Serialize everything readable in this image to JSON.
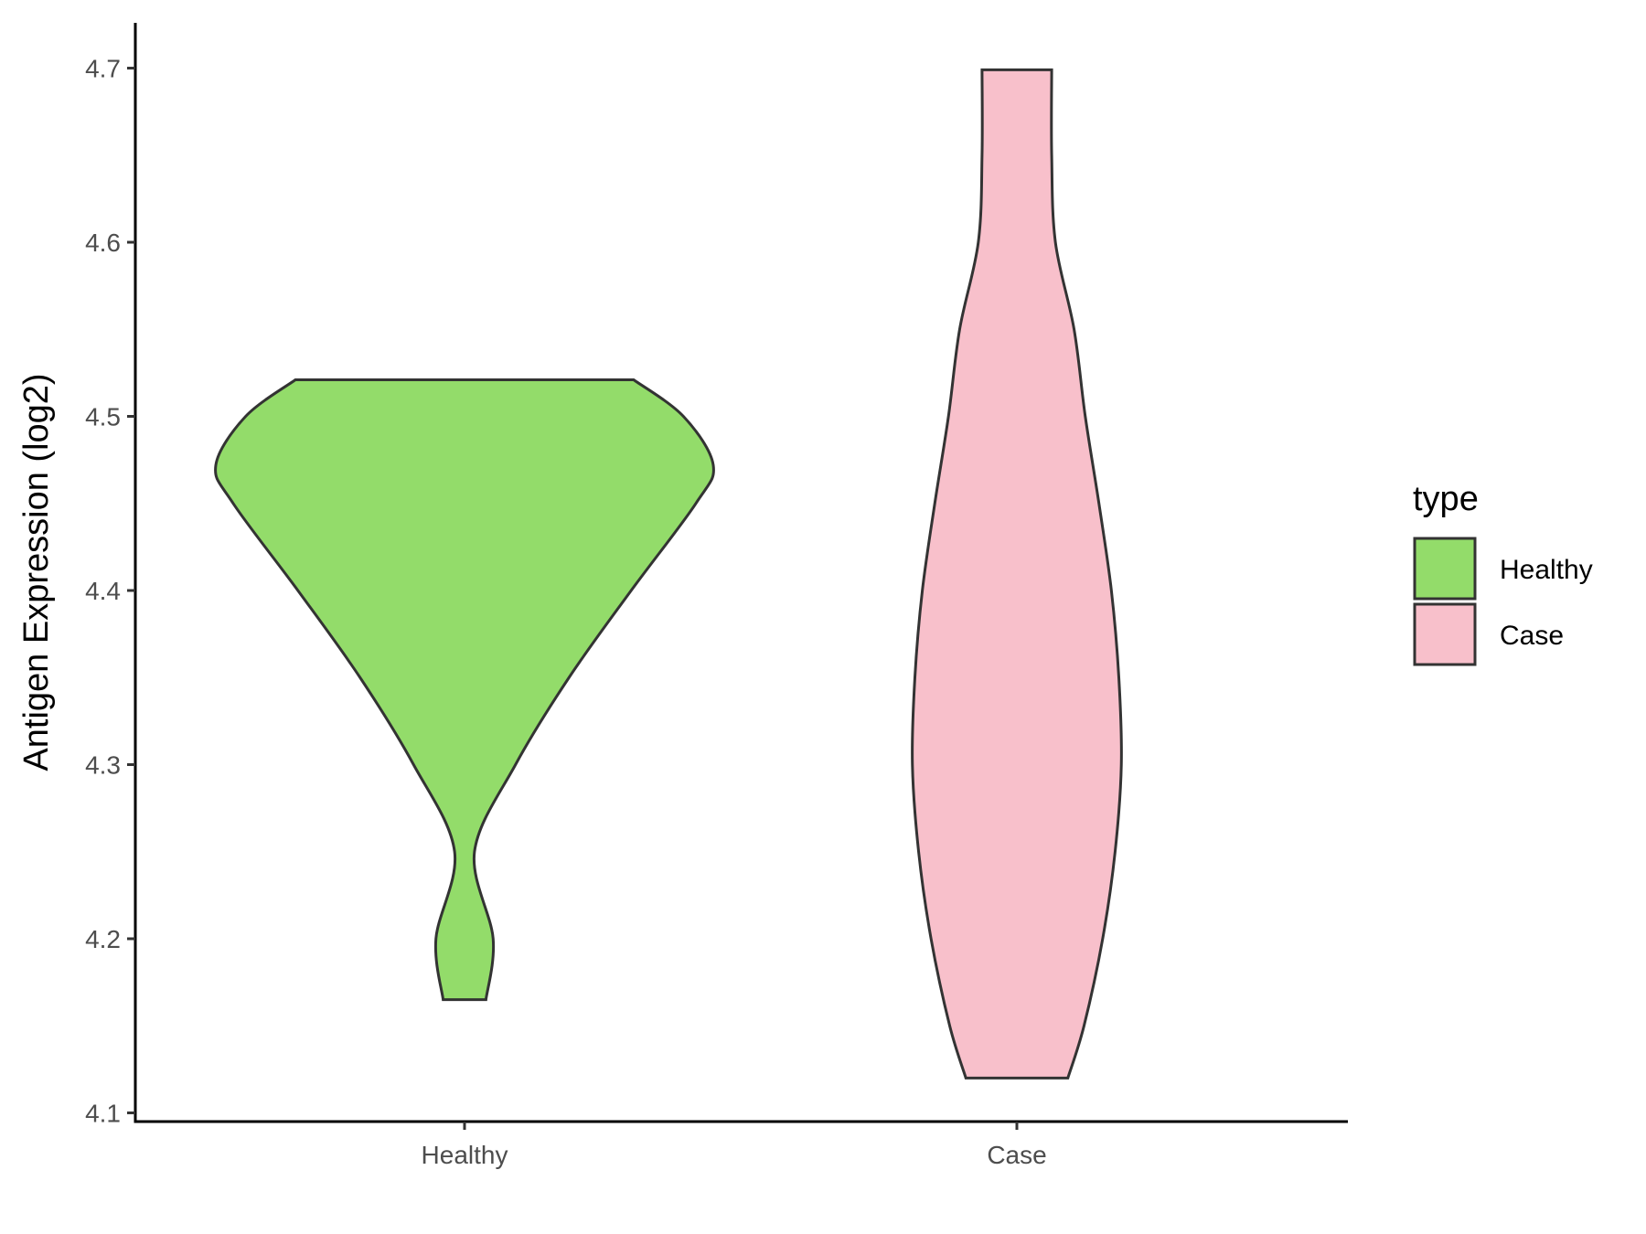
{
  "chart_data": {
    "type": "violin",
    "title": "",
    "xlabel": "",
    "ylabel": "Antigen Expression (log2)",
    "ylim": [
      4.095,
      4.726
    ],
    "yticks": [
      4.1,
      4.2,
      4.3,
      4.4,
      4.5,
      4.6,
      4.7
    ],
    "ytick_labels": [
      "4.1",
      "4.2",
      "4.3",
      "4.4",
      "4.5",
      "4.6",
      "4.7"
    ],
    "categories": [
      "Healthy",
      "Case"
    ],
    "grid": false,
    "legend": {
      "title": "type",
      "placement": "right",
      "entries": [
        {
          "label": "Healthy",
          "color": "#93dc6a"
        },
        {
          "label": "Case",
          "color": "#f8c0cb"
        }
      ]
    },
    "series": [
      {
        "category": "Healthy",
        "color": "#93dc6a",
        "y_min": 4.165,
        "y_max": 4.521,
        "density_profile": [
          {
            "y": 4.165,
            "w": 0.086
          },
          {
            "y": 4.2,
            "w": 0.115
          },
          {
            "y": 4.25,
            "w": 0.04
          },
          {
            "y": 4.3,
            "w": 0.205
          },
          {
            "y": 4.35,
            "w": 0.42
          },
          {
            "y": 4.4,
            "w": 0.67
          },
          {
            "y": 4.45,
            "w": 0.93
          },
          {
            "y": 4.472,
            "w": 1.0
          },
          {
            "y": 4.5,
            "w": 0.88
          },
          {
            "y": 4.521,
            "w": 0.68
          }
        ]
      },
      {
        "category": "Case",
        "color": "#f8c0cb",
        "y_min": 4.12,
        "y_max": 4.699,
        "density_profile": [
          {
            "y": 4.12,
            "w": 0.205
          },
          {
            "y": 4.15,
            "w": 0.27
          },
          {
            "y": 4.2,
            "w": 0.345
          },
          {
            "y": 4.25,
            "w": 0.395
          },
          {
            "y": 4.3,
            "w": 0.42
          },
          {
            "y": 4.35,
            "w": 0.41
          },
          {
            "y": 4.4,
            "w": 0.38
          },
          {
            "y": 4.45,
            "w": 0.33
          },
          {
            "y": 4.5,
            "w": 0.275
          },
          {
            "y": 4.55,
            "w": 0.23
          },
          {
            "y": 4.6,
            "w": 0.155
          },
          {
            "y": 4.65,
            "w": 0.14
          },
          {
            "y": 4.699,
            "w": 0.14
          }
        ]
      }
    ]
  }
}
